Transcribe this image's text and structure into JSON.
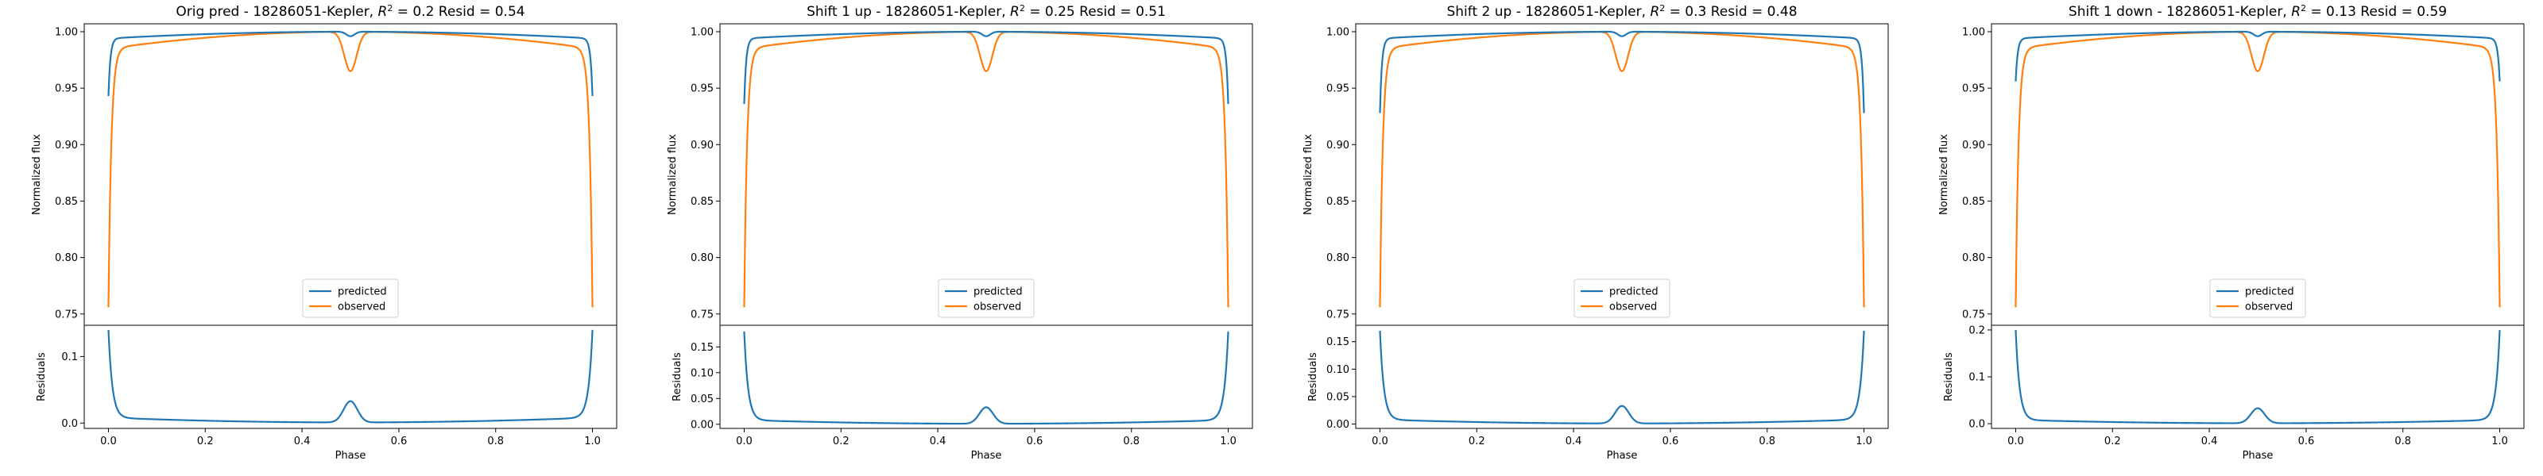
{
  "figure": {
    "colors": {
      "predicted": "#1f77b4",
      "observed": "#ff7f0e"
    }
  },
  "chart_data": [
    {
      "type": "line",
      "title": "Orig pred - 18286051-Kepler, $R^2 = 0.2$ Resid = 0.54",
      "xlabel": "Phase",
      "ylabel": "Normalized flux",
      "residual_ylabel": "Residuals",
      "xlim": [
        -0.05,
        1.05
      ],
      "ylim": [
        0.74,
        1.007
      ],
      "residual_ylim": [
        -0.008,
        0.147
      ],
      "xticks": [
        0.0,
        0.2,
        0.4,
        0.6,
        0.8,
        1.0
      ],
      "yticks": [
        0.75,
        0.8,
        0.85,
        0.9,
        0.95,
        1.0
      ],
      "residual_yticks": [
        0.0,
        0.1
      ],
      "legend": "lower-center",
      "grid": false,
      "series": [
        {
          "name": "predicted",
          "edge_min": 0.943,
          "edge_plateau": 0.994,
          "center_dip": 0.996
        },
        {
          "name": "observed",
          "edge_min": 0.756,
          "edge_plateau": 0.985,
          "center_dip": 0.965
        }
      ],
      "residuals": {
        "edge_max": 0.14,
        "plateau": 0.006,
        "center_bump": 0.032,
        "mid_min": 0.0
      }
    },
    {
      "type": "line",
      "title": "Shift 1 up - 18286051-Kepler, $R^2 = 0.25$ Resid = 0.51",
      "xlabel": "Phase",
      "ylabel": "Normalized flux",
      "residual_ylabel": "Residuals",
      "xlim": [
        -0.05,
        1.05
      ],
      "ylim": [
        0.74,
        1.007
      ],
      "residual_ylim": [
        -0.008,
        0.192
      ],
      "xticks": [
        0.0,
        0.2,
        0.4,
        0.6,
        0.8,
        1.0
      ],
      "yticks": [
        0.75,
        0.8,
        0.85,
        0.9,
        0.95,
        1.0
      ],
      "residual_yticks": [
        0.0,
        0.05,
        0.1,
        0.15
      ],
      "legend": "lower-center",
      "grid": false,
      "series": [
        {
          "name": "predicted",
          "edge_min": 0.936,
          "edge_plateau": 0.994,
          "center_dip": 0.996
        },
        {
          "name": "observed",
          "edge_min": 0.756,
          "edge_plateau": 0.985,
          "center_dip": 0.965
        }
      ],
      "residuals": {
        "edge_max": 0.18,
        "plateau": 0.006,
        "center_bump": 0.032,
        "mid_min": 0.0
      }
    },
    {
      "type": "line",
      "title": "Shift 2 up - 18286051-Kepler, $R^2 = 0.3$ Resid = 0.48",
      "xlabel": "Phase",
      "ylabel": "Normalized flux",
      "residual_ylabel": "Residuals",
      "xlim": [
        -0.05,
        1.05
      ],
      "ylim": [
        0.74,
        1.007
      ],
      "residual_ylim": [
        -0.008,
        0.18
      ],
      "xticks": [
        0.0,
        0.2,
        0.4,
        0.6,
        0.8,
        1.0
      ],
      "yticks": [
        0.75,
        0.8,
        0.85,
        0.9,
        0.95,
        1.0
      ],
      "residual_yticks": [
        0.0,
        0.05,
        0.1,
        0.15
      ],
      "legend": "lower-center",
      "grid": false,
      "series": [
        {
          "name": "predicted",
          "edge_min": 0.928,
          "edge_plateau": 0.994,
          "center_dip": 0.996
        },
        {
          "name": "observed",
          "edge_min": 0.756,
          "edge_plateau": 0.985,
          "center_dip": 0.965
        }
      ],
      "residuals": {
        "edge_max": 0.17,
        "plateau": 0.006,
        "center_bump": 0.032,
        "mid_min": 0.0
      }
    },
    {
      "type": "line",
      "title": "Shift 1 down - 18286051-Kepler, $R^2 = 0.13$ Resid = 0.59",
      "xlabel": "Phase",
      "ylabel": "Normalized flux",
      "residual_ylabel": "Residuals",
      "xlim": [
        -0.05,
        1.05
      ],
      "ylim": [
        0.74,
        1.007
      ],
      "residual_ylim": [
        -0.01,
        0.21
      ],
      "xticks": [
        0.0,
        0.2,
        0.4,
        0.6,
        0.8,
        1.0
      ],
      "yticks": [
        0.75,
        0.8,
        0.85,
        0.9,
        0.95,
        1.0
      ],
      "residual_yticks": [
        0.0,
        0.1,
        0.2
      ],
      "legend": "lower-center",
      "grid": false,
      "series": [
        {
          "name": "predicted",
          "edge_min": 0.956,
          "edge_plateau": 0.994,
          "center_dip": 0.996
        },
        {
          "name": "observed",
          "edge_min": 0.756,
          "edge_plateau": 0.985,
          "center_dip": 0.965
        }
      ],
      "residuals": {
        "edge_max": 0.2,
        "plateau": 0.006,
        "center_bump": 0.032,
        "mid_min": 0.0
      }
    }
  ]
}
